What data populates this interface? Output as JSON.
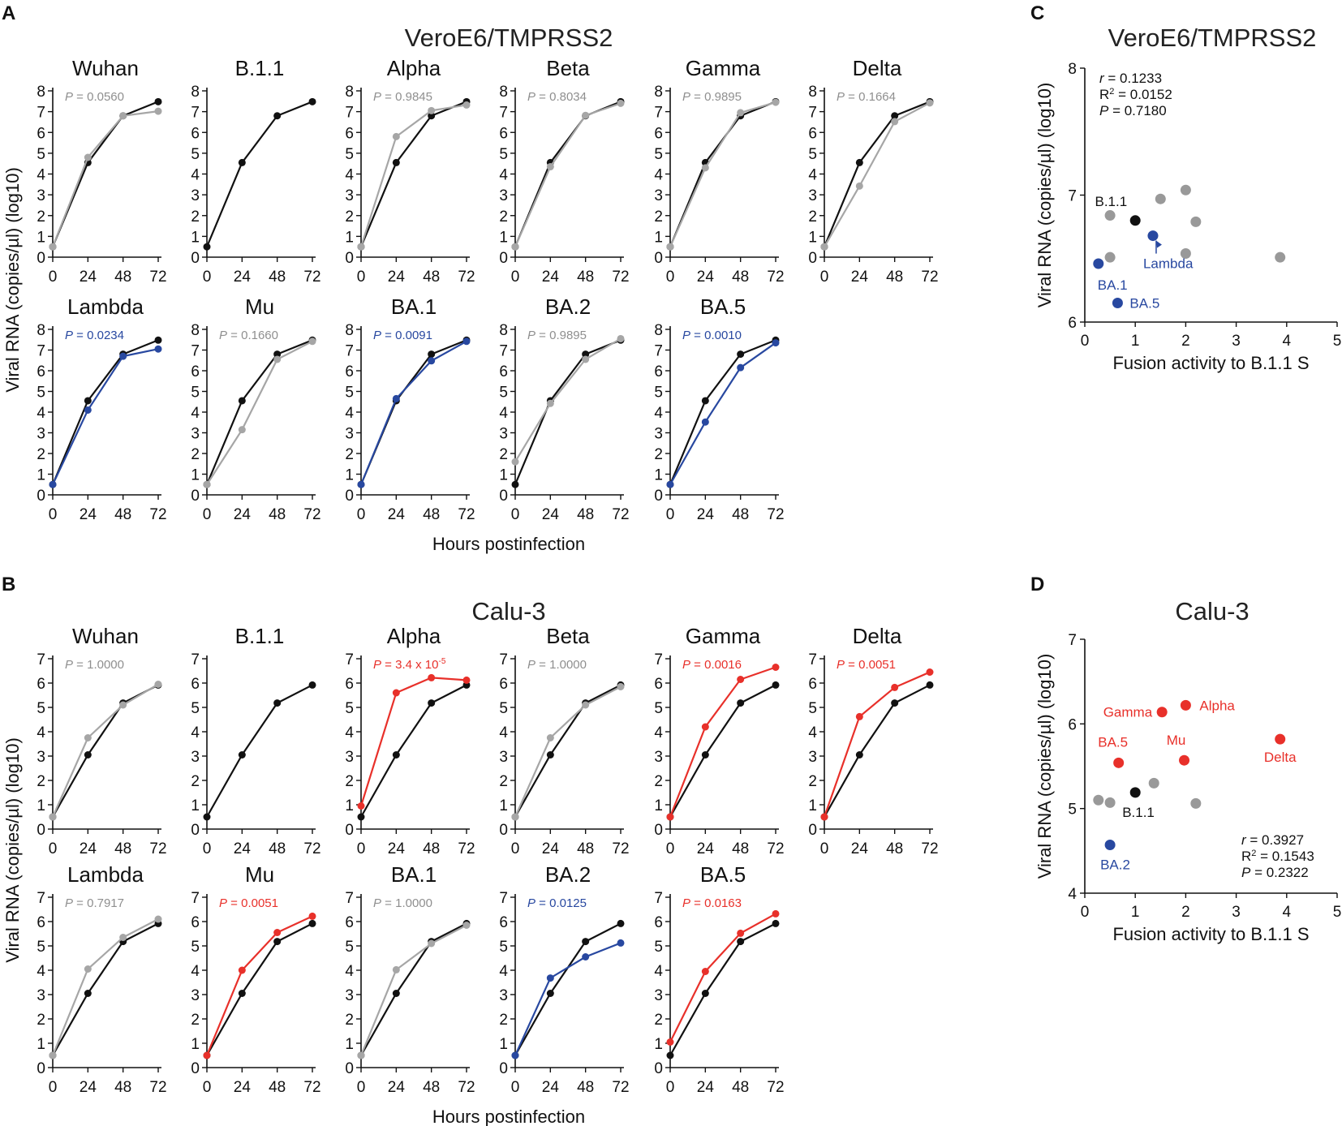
{
  "colors": {
    "ref": "#111111",
    "ns": "#a6a6a6",
    "up": "#e8302a",
    "down": "#2848a0",
    "ns_text": "#8f8f8f",
    "scatter_gray": "#999999"
  },
  "panel_letters": {
    "a": "A",
    "b": "B",
    "c": "C",
    "d": "D"
  },
  "titles": {
    "a": "VeroE6/TMPRSS2",
    "b": "Calu-3",
    "c": "VeroE6/TMPRSS2",
    "d": "Calu-3"
  },
  "axis": {
    "y_label": "Viral RNA (copies/µl) (log10)",
    "x_label_lines": "Hours postinfection",
    "x_label_scatter": "Fusion activity to B.1.1 S",
    "x_ticks": [
      "0",
      "24",
      "48",
      "72"
    ]
  },
  "chart_data": [
    {
      "panel": "A",
      "type": "line",
      "title": "VeroE6/TMPRSS2",
      "xlabel": "Hours postinfection",
      "ylabel": "Viral RNA (copies/µl) (log10)",
      "x": [
        0,
        24,
        48,
        72
      ],
      "ylim": [
        0,
        8
      ],
      "reference": {
        "name": "B.1.1",
        "values": [
          0.5,
          4.55,
          6.8,
          7.48
        ]
      },
      "subplots": [
        {
          "name": "Wuhan",
          "p": "0.0560",
          "sig": "ns",
          "values": [
            0.5,
            4.8,
            6.8,
            7.02
          ]
        },
        {
          "name": "B.1.1",
          "p": "",
          "sig": "none",
          "values": []
        },
        {
          "name": "Alpha",
          "p": "0.9845",
          "sig": "ns",
          "values": [
            0.5,
            5.8,
            7.05,
            7.32
          ]
        },
        {
          "name": "Beta",
          "p": "0.8034",
          "sig": "ns",
          "values": [
            0.5,
            4.35,
            6.82,
            7.4
          ]
        },
        {
          "name": "Gamma",
          "p": "0.9895",
          "sig": "ns",
          "values": [
            0.5,
            4.3,
            6.95,
            7.45
          ]
        },
        {
          "name": "Delta",
          "p": "0.1664",
          "sig": "ns",
          "values": [
            0.5,
            3.42,
            6.52,
            7.42
          ]
        },
        {
          "name": "Lambda",
          "p": "0.0234",
          "sig": "down",
          "values": [
            0.5,
            4.1,
            6.7,
            7.05
          ]
        },
        {
          "name": "Mu",
          "p": "0.1660",
          "sig": "ns",
          "values": [
            0.5,
            3.15,
            6.55,
            7.42
          ]
        },
        {
          "name": "BA.1",
          "p": "0.0091",
          "sig": "down",
          "values": [
            0.5,
            4.65,
            6.48,
            7.42
          ]
        },
        {
          "name": "BA.2",
          "p": "0.9895",
          "sig": "ns",
          "values": [
            1.6,
            4.42,
            6.55,
            7.55
          ]
        },
        {
          "name": "BA.5",
          "p": "0.0010",
          "sig": "down",
          "values": [
            0.5,
            3.52,
            6.15,
            7.35
          ]
        }
      ]
    },
    {
      "panel": "B",
      "type": "line",
      "title": "Calu-3",
      "xlabel": "Hours postinfection",
      "ylabel": "Viral RNA (copies/µl) (log10)",
      "x": [
        0,
        24,
        48,
        72
      ],
      "ylim": [
        0,
        7
      ],
      "reference": {
        "name": "B.1.1",
        "values": [
          0.5,
          3.05,
          5.18,
          5.92
        ]
      },
      "subplots": [
        {
          "name": "Wuhan",
          "p": "1.0000",
          "sig": "ns",
          "values": [
            0.5,
            3.75,
            5.1,
            5.95
          ]
        },
        {
          "name": "B.1.1",
          "p": "",
          "sig": "none",
          "values": []
        },
        {
          "name": "Alpha",
          "p": "3.4 x 10",
          "p_exp": "-5",
          "sig": "up",
          "values": [
            0.95,
            5.6,
            6.22,
            6.12
          ]
        },
        {
          "name": "Beta",
          "p": "1.0000",
          "sig": "ns",
          "values": [
            0.5,
            3.75,
            5.1,
            5.85
          ]
        },
        {
          "name": "Gamma",
          "p": "0.0016",
          "sig": "up",
          "values": [
            0.5,
            4.2,
            6.15,
            6.65
          ]
        },
        {
          "name": "Delta",
          "p": "0.0051",
          "sig": "up",
          "values": [
            0.5,
            4.62,
            5.82,
            6.45
          ]
        },
        {
          "name": "Lambda",
          "p": "0.7917",
          "sig": "ns",
          "values": [
            0.5,
            4.05,
            5.35,
            6.1
          ]
        },
        {
          "name": "Mu",
          "p": "0.0051",
          "sig": "up",
          "values": [
            0.5,
            4.0,
            5.55,
            6.22
          ]
        },
        {
          "name": "BA.1",
          "p": "1.0000",
          "sig": "ns",
          "values": [
            0.5,
            4.02,
            5.1,
            5.85
          ]
        },
        {
          "name": "BA.2",
          "p": "0.0125",
          "sig": "down",
          "values": [
            0.5,
            3.68,
            4.55,
            5.12
          ]
        },
        {
          "name": "BA.5",
          "p": "0.0163",
          "sig": "up",
          "values": [
            1.05,
            3.95,
            5.52,
            6.32
          ]
        }
      ]
    },
    {
      "panel": "C",
      "type": "scatter",
      "title": "VeroE6/TMPRSS2",
      "xlabel": "Fusion activity to B.1.1 S",
      "ylabel": "Viral RNA (copies/µl) (log10)",
      "xlim": [
        0,
        5
      ],
      "ylim": [
        6,
        8
      ],
      "x_ticks": [
        "0",
        "1",
        "2",
        "3",
        "4",
        "5"
      ],
      "y_ticks": [
        "6",
        "7",
        "8"
      ],
      "stats": {
        "r": "= 0.1233",
        "R2": "= 0.0152",
        "P": "= 0.7180"
      },
      "points": [
        {
          "x": 0.5,
          "y": 6.84,
          "group": "gray"
        },
        {
          "x": 0.5,
          "y": 6.51,
          "group": "gray"
        },
        {
          "x": 1.5,
          "y": 6.97,
          "group": "gray"
        },
        {
          "x": 2.0,
          "y": 7.04,
          "group": "gray"
        },
        {
          "x": 2.2,
          "y": 6.79,
          "group": "gray"
        },
        {
          "x": 2.0,
          "y": 6.54,
          "group": "gray"
        },
        {
          "x": 3.87,
          "y": 6.51,
          "group": "gray"
        },
        {
          "x": 1.0,
          "y": 6.8,
          "group": "ref",
          "label": "B.1.1"
        },
        {
          "x": 1.35,
          "y": 6.68,
          "group": "blue",
          "label": "Lambda"
        },
        {
          "x": 0.27,
          "y": 6.46,
          "group": "blue",
          "label": "BA.1"
        },
        {
          "x": 0.65,
          "y": 6.15,
          "group": "blue",
          "label": "BA.5"
        }
      ]
    },
    {
      "panel": "D",
      "type": "scatter",
      "title": "Calu-3",
      "xlabel": "Fusion activity to B.1.1 S",
      "ylabel": "Viral RNA (copies/µl) (log10)",
      "xlim": [
        0,
        5
      ],
      "ylim": [
        4,
        7
      ],
      "x_ticks": [
        "0",
        "1",
        "2",
        "3",
        "4",
        "5"
      ],
      "y_ticks": [
        "4",
        "5",
        "6",
        "7"
      ],
      "stats": {
        "r": "= 0.3927",
        "R2": "= 0.1543",
        "P": "= 0.2322"
      },
      "points": [
        {
          "x": 0.27,
          "y": 5.1,
          "group": "gray"
        },
        {
          "x": 0.5,
          "y": 5.07,
          "group": "gray"
        },
        {
          "x": 1.37,
          "y": 5.3,
          "group": "gray"
        },
        {
          "x": 2.2,
          "y": 5.06,
          "group": "gray"
        },
        {
          "x": 1.0,
          "y": 5.19,
          "group": "ref",
          "label": "B.1.1"
        },
        {
          "x": 1.53,
          "y": 6.14,
          "group": "red",
          "label": "Gamma"
        },
        {
          "x": 2.0,
          "y": 6.22,
          "group": "red",
          "label": "Alpha"
        },
        {
          "x": 0.67,
          "y": 5.54,
          "group": "red",
          "label": "BA.5"
        },
        {
          "x": 1.97,
          "y": 5.57,
          "group": "red",
          "label": "Mu"
        },
        {
          "x": 3.87,
          "y": 5.82,
          "group": "red",
          "label": "Delta"
        },
        {
          "x": 0.5,
          "y": 4.57,
          "group": "blue",
          "label": "BA.2"
        }
      ]
    }
  ]
}
